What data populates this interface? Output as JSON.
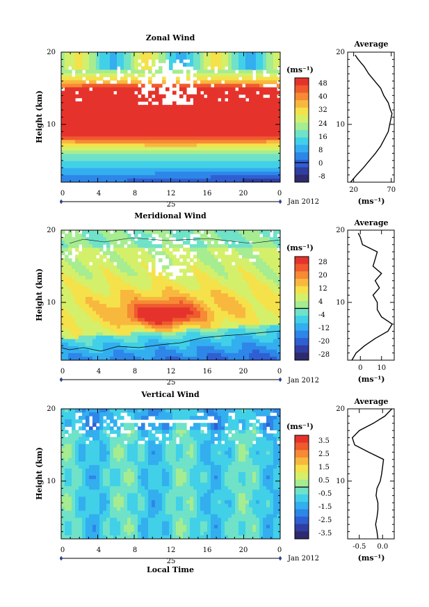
{
  "chart_data": [
    {
      "type": "heatmap",
      "title": "Zonal Wind",
      "ylabel": "Height (km)",
      "ylim": [
        2,
        20
      ],
      "yticks": [
        "20",
        "10"
      ],
      "x_ticks": [
        "0",
        "4",
        "8",
        "12",
        "16",
        "20",
        "0"
      ],
      "date_label": "25",
      "month_label": "Jan 2012",
      "colorbar": {
        "unit": "(ms⁻¹)",
        "ticks": [
          "48",
          "40",
          "32",
          "24",
          "16",
          "8",
          "0",
          "-8"
        ],
        "range": [
          -12,
          52
        ]
      },
      "profile": {
        "title": "Average",
        "xlim": [
          12,
          74
        ],
        "xticks": [
          "20",
          "70"
        ],
        "xlabel": "(ms⁻¹)",
        "yticks": [
          "20",
          "10"
        ],
        "heights": [
          2.0,
          3,
          4,
          5,
          6,
          7,
          8,
          9,
          10,
          11,
          11.5,
          12,
          13,
          14,
          15,
          16,
          17,
          18,
          19,
          19.6
        ],
        "values": [
          16,
          24,
          33,
          41,
          49,
          56,
          61,
          66,
          68,
          70,
          71,
          69,
          66,
          60,
          56,
          48,
          40,
          34,
          26,
          22
        ]
      }
    },
    {
      "type": "heatmap",
      "title": "Meridional Wind",
      "ylabel": "Height (km)",
      "ylim": [
        2,
        20
      ],
      "yticks": [
        "20",
        "10"
      ],
      "x_ticks": [
        "0",
        "4",
        "8",
        "12",
        "16",
        "20",
        "0"
      ],
      "date_label": "25",
      "month_label": "Jan 2012",
      "colorbar": {
        "unit": "(ms⁻¹)",
        "ticks": [
          "28",
          "20",
          "12",
          "4",
          "-4",
          "-12",
          "-20",
          "-28"
        ],
        "range": [
          -32,
          32
        ]
      },
      "profile": {
        "title": "Average",
        "xlim": [
          -6,
          16
        ],
        "xticks": [
          "0",
          "10"
        ],
        "xlabel": "(ms⁻¹)",
        "yticks": [
          "20",
          "10"
        ],
        "heights": [
          2.0,
          3,
          4,
          5,
          6,
          7,
          8,
          9,
          10,
          11,
          12,
          13,
          14,
          15,
          16,
          17,
          18,
          19,
          19.6
        ],
        "values": [
          -4,
          -2,
          2,
          7,
          13,
          15,
          10,
          8,
          8,
          6,
          9,
          7,
          10,
          6,
          7,
          8,
          1,
          0,
          -1
        ]
      }
    },
    {
      "type": "heatmap",
      "title": "Vertical Wind",
      "ylabel": "Height (km)",
      "ylim": [
        2,
        20
      ],
      "yticks": [
        "20",
        "10"
      ],
      "x_ticks": [
        "0",
        "4",
        "8",
        "12",
        "16",
        "20",
        "0"
      ],
      "date_label": "25",
      "month_label": "Jan 2012",
      "xlabel": "Local Time",
      "colorbar": {
        "unit": "(ms⁻¹)",
        "ticks": [
          "3.5",
          "2.5",
          "1.5",
          "0.5",
          "-0.5",
          "-1.5",
          "-2.5",
          "-3.5"
        ],
        "range": [
          -4,
          4
        ]
      },
      "profile": {
        "title": "Average",
        "xlim": [
          -0.75,
          0.25
        ],
        "xticks": [
          "-0.5",
          "0.0"
        ],
        "xlabel": "(ms⁻¹)",
        "yticks": [
          "20",
          "10"
        ],
        "heights": [
          2.0,
          3,
          4,
          5,
          6,
          7,
          8,
          9,
          10,
          11,
          12,
          13,
          14,
          15,
          16,
          17,
          18,
          19,
          20
        ],
        "values": [
          -0.1,
          -0.12,
          -0.15,
          -0.12,
          -0.1,
          -0.1,
          -0.14,
          -0.12,
          -0.05,
          -0.02,
          0.0,
          0.02,
          -0.3,
          -0.6,
          -0.65,
          -0.5,
          -0.2,
          0.05,
          0.2
        ]
      }
    }
  ]
}
